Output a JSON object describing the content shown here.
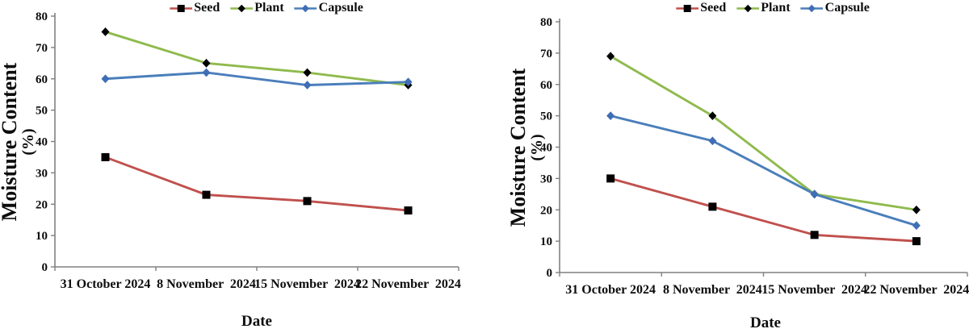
{
  "page": {
    "background": "#ffffff",
    "axis_color": "#808080",
    "text_color": "#0d0d0d"
  },
  "chart_data": [
    {
      "type": "line",
      "title": "",
      "xlabel": "Date",
      "ylabel": "Moisture Content (%)",
      "ylabel_lines": [
        "Moisture Content",
        "(%)"
      ],
      "ylim": [
        0,
        80
      ],
      "yticks": [
        0,
        10,
        20,
        30,
        40,
        50,
        60,
        70,
        80
      ],
      "grid": false,
      "legend_position": "top-center",
      "legend_labels": [
        "Seed",
        "Plant",
        "Capsule"
      ],
      "categories": [
        "31 October 2024",
        "8 November  2024",
        "15 November  2024",
        "22 November  2024"
      ],
      "series": [
        {
          "name": "Seed",
          "line_color": "#c0504d",
          "marker": "square",
          "marker_color": "#000000",
          "values": [
            35,
            23,
            21,
            18
          ]
        },
        {
          "name": "Plant",
          "line_color": "#8fba4d",
          "marker": "diamond",
          "marker_color": "#000000",
          "values": [
            75,
            65,
            62,
            58
          ]
        },
        {
          "name": "Capsule",
          "line_color": "#4a7ebb",
          "marker": "diamond",
          "marker_color": "#3f6eb5",
          "values": [
            60,
            62,
            58,
            59
          ]
        }
      ]
    },
    {
      "type": "line",
      "title": "",
      "xlabel": "Date",
      "ylabel": "Moisture Content (%)",
      "ylabel_lines": [
        "Moisture Content",
        "(%)"
      ],
      "ylim": [
        0,
        80
      ],
      "yticks": [
        0,
        10,
        20,
        30,
        40,
        50,
        60,
        70,
        80
      ],
      "grid": false,
      "legend_position": "top-center",
      "legend_labels": [
        "Seed",
        "Plant",
        "Capsule"
      ],
      "categories": [
        "31 October 2024",
        "8 November  2024",
        "15 November  2024",
        "22 November  2024"
      ],
      "series": [
        {
          "name": "Seed",
          "line_color": "#c0504d",
          "marker": "square",
          "marker_color": "#000000",
          "values": [
            30,
            21,
            12,
            10
          ]
        },
        {
          "name": "Plant",
          "line_color": "#8fba4d",
          "marker": "diamond",
          "marker_color": "#000000",
          "values": [
            69,
            50,
            25,
            20
          ]
        },
        {
          "name": "Capsule",
          "line_color": "#4a7ebb",
          "marker": "diamond",
          "marker_color": "#3f6eb5",
          "values": [
            50,
            42,
            25,
            15
          ]
        }
      ]
    }
  ]
}
